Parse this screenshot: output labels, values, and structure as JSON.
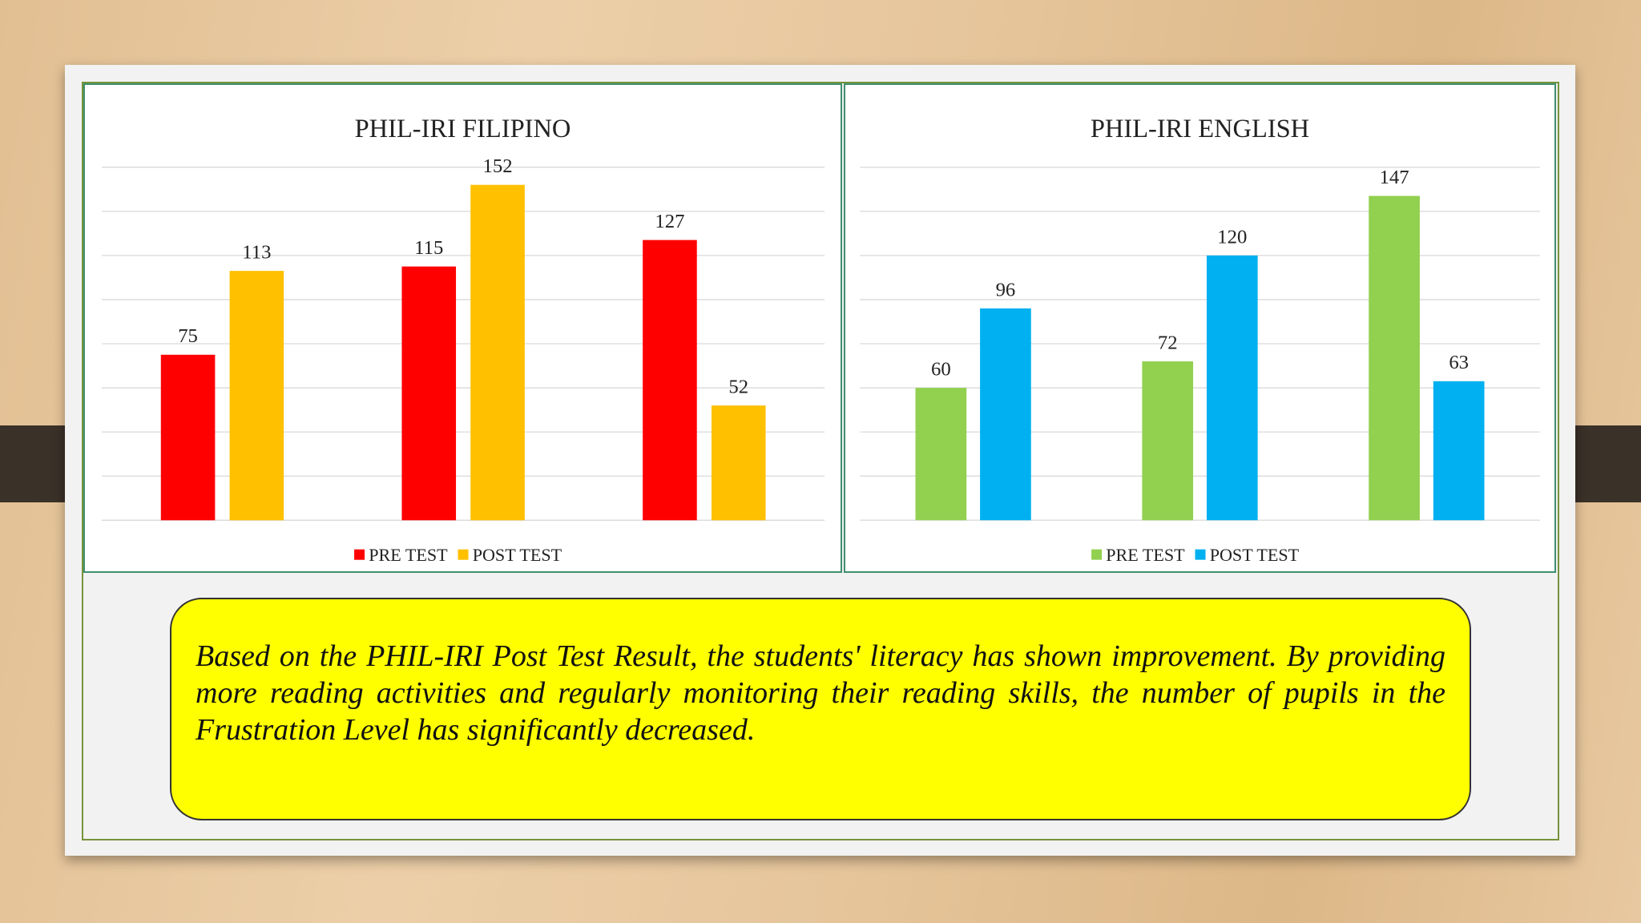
{
  "chart_data": [
    {
      "type": "bar",
      "title": "PHIL-IRI FILIPINO",
      "categories": [
        null,
        null,
        null
      ],
      "series": [
        {
          "name": "PRE TEST",
          "color": "#ff0000",
          "values": [
            75,
            115,
            127
          ]
        },
        {
          "name": "POST TEST",
          "color": "#ffc000",
          "values": [
            113,
            152,
            52
          ]
        }
      ],
      "ylim": [
        0,
        160
      ],
      "yticks": [
        0,
        20,
        40,
        60,
        80,
        100,
        120,
        140,
        160
      ],
      "grid": true,
      "legend": "bottom"
    },
    {
      "type": "bar",
      "title": "PHIL-IRI ENGLISH",
      "categories": [
        null,
        null,
        null
      ],
      "series": [
        {
          "name": "PRE TEST",
          "color": "#92d050",
          "values": [
            60,
            72,
            147
          ]
        },
        {
          "name": "POST TEST",
          "color": "#00b0f0",
          "values": [
            96,
            120,
            63
          ]
        }
      ],
      "ylim": [
        0,
        160
      ],
      "yticks": [
        0,
        20,
        40,
        60,
        80,
        100,
        120,
        140,
        160
      ],
      "grid": true,
      "legend": "bottom"
    }
  ],
  "caption": "Based on the PHIL-IRI Post Test Result, the students' literacy has shown improvement. By providing more reading activities and regularly monitoring their reading skills, the number of pupils in the Frustration Level has significantly decreased."
}
